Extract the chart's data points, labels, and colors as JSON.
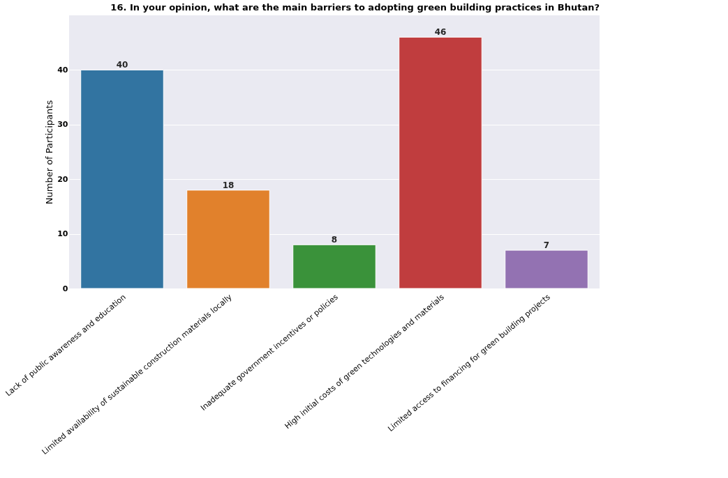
{
  "chart_data": {
    "type": "bar",
    "title": "16. In your opinion, what are the main barriers to adopting green building practices in Bhutan?",
    "ylabel": "Number of Participants",
    "categories": [
      "Lack of public awareness and education",
      "Limited availability of sustainable construction materials locally",
      "Inadequate government incentives or policies",
      "High initial costs of green technologies and materials",
      "Limited access to financing for green building projects"
    ],
    "values": [
      40,
      18,
      8,
      46,
      7
    ],
    "colors": [
      "#3274a1",
      "#e1812c",
      "#3a923a",
      "#c03d3e",
      "#9372b2"
    ],
    "ylim": [
      0,
      50
    ],
    "yticks": [
      0,
      10,
      20,
      30,
      40
    ],
    "grid": "y",
    "data_labels": true
  }
}
